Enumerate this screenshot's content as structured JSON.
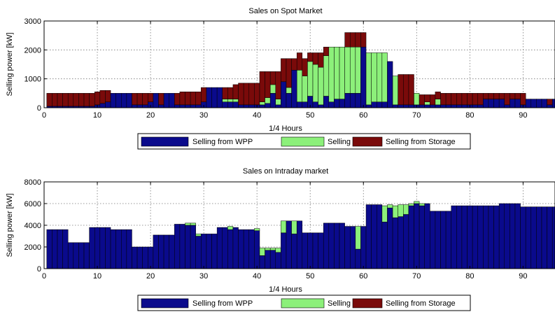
{
  "colors": {
    "wpp": "#0a0a8c",
    "pv": "#8cf07a",
    "storage": "#7a0a0a"
  },
  "chart_data": [
    {
      "type": "bar",
      "stacked": true,
      "title": "Sales on Spot Market",
      "xlabel": "1/4 Hours",
      "ylabel": "Selling power [kW]",
      "xlim": [
        0,
        96
      ],
      "ylim": [
        0,
        3000
      ],
      "xticks": [
        0,
        10,
        20,
        30,
        40,
        50,
        60,
        70,
        80,
        90
      ],
      "yticks": [
        0,
        1000,
        2000,
        3000
      ],
      "grid": true,
      "legend": {
        "placement": "bottom-outside",
        "entries": [
          "Selling from WPP",
          "Selling from PV",
          "Selling from Storage"
        ]
      },
      "x": [
        1,
        2,
        3,
        4,
        5,
        6,
        7,
        8,
        9,
        10,
        11,
        12,
        13,
        14,
        15,
        16,
        17,
        18,
        19,
        20,
        21,
        22,
        23,
        24,
        25,
        26,
        27,
        28,
        29,
        30,
        31,
        32,
        33,
        34,
        35,
        36,
        37,
        38,
        39,
        40,
        41,
        42,
        43,
        44,
        45,
        46,
        47,
        48,
        49,
        50,
        51,
        52,
        53,
        54,
        55,
        56,
        57,
        58,
        59,
        60,
        61,
        62,
        63,
        64,
        65,
        66,
        67,
        68,
        69,
        70,
        71,
        72,
        73,
        74,
        75,
        76,
        77,
        78,
        79,
        80,
        81,
        82,
        83,
        84,
        85,
        86,
        87,
        88,
        89,
        90,
        91,
        92,
        93,
        94,
        95,
        96
      ],
      "series": [
        {
          "name": "Selling from WPP",
          "values": [
            50,
            50,
            50,
            50,
            50,
            50,
            50,
            50,
            50,
            100,
            150,
            200,
            500,
            500,
            500,
            500,
            100,
            100,
            100,
            200,
            500,
            100,
            500,
            500,
            100,
            100,
            100,
            100,
            100,
            200,
            700,
            700,
            700,
            200,
            200,
            200,
            100,
            100,
            100,
            100,
            100,
            150,
            500,
            100,
            900,
            500,
            1300,
            200,
            200,
            400,
            200,
            100,
            400,
            200,
            300,
            300,
            500,
            500,
            500,
            2100,
            100,
            200,
            200,
            200,
            1600,
            100,
            100,
            100,
            100,
            100,
            100,
            100,
            100,
            100,
            100,
            100,
            100,
            100,
            100,
            100,
            100,
            100,
            300,
            300,
            300,
            300,
            100,
            300,
            300,
            100,
            300,
            300,
            300,
            300,
            100,
            300
          ]
        },
        {
          "name": "Selling from PV",
          "values": [
            0,
            0,
            0,
            0,
            0,
            0,
            0,
            0,
            0,
            0,
            0,
            0,
            0,
            0,
            0,
            0,
            0,
            0,
            0,
            0,
            0,
            0,
            0,
            0,
            0,
            0,
            0,
            0,
            0,
            0,
            0,
            0,
            0,
            100,
            100,
            100,
            0,
            0,
            0,
            0,
            100,
            200,
            300,
            200,
            0,
            200,
            0,
            1100,
            900,
            1200,
            1300,
            1300,
            1400,
            1900,
            1800,
            1800,
            1600,
            1600,
            1600,
            0,
            1800,
            1700,
            1700,
            1700,
            0,
            1000,
            0,
            0,
            0,
            400,
            0,
            100,
            0,
            200,
            0,
            0,
            0,
            0,
            0,
            0,
            0,
            0,
            0,
            0,
            0,
            0,
            0,
            0,
            0,
            0,
            0,
            0,
            0,
            0,
            0,
            0
          ]
        },
        {
          "name": "Selling from Storage",
          "values": [
            450,
            450,
            450,
            450,
            450,
            450,
            450,
            450,
            450,
            450,
            450,
            400,
            0,
            0,
            0,
            0,
            400,
            400,
            400,
            300,
            0,
            400,
            0,
            0,
            400,
            450,
            450,
            450,
            450,
            500,
            0,
            0,
            0,
            400,
            400,
            500,
            750,
            750,
            750,
            750,
            1050,
            900,
            450,
            950,
            800,
            1000,
            400,
            600,
            600,
            300,
            400,
            500,
            300,
            0,
            0,
            0,
            500,
            500,
            500,
            500,
            0,
            0,
            0,
            0,
            0,
            0,
            1050,
            1050,
            1050,
            0,
            350,
            250,
            350,
            250,
            400,
            400,
            400,
            400,
            400,
            400,
            400,
            400,
            200,
            200,
            200,
            200,
            400,
            200,
            200,
            400,
            0,
            0,
            0,
            0,
            200,
            0
          ]
        }
      ]
    },
    {
      "type": "bar",
      "stacked": true,
      "title": "Sales on Intraday market",
      "xlabel": "1/4 Hours",
      "ylabel": "Selling power [kW]",
      "xlim": [
        0,
        96
      ],
      "ylim": [
        0,
        8000
      ],
      "xticks": [
        0,
        10,
        20,
        30,
        40,
        50,
        60,
        70,
        80,
        90
      ],
      "yticks": [
        0,
        2000,
        4000,
        6000,
        8000
      ],
      "grid": true,
      "legend": {
        "placement": "bottom-outside",
        "entries": [
          "Selling from WPP",
          "Selling from PV",
          "Selling from Storage"
        ]
      },
      "x": [
        1,
        2,
        3,
        4,
        5,
        6,
        7,
        8,
        9,
        10,
        11,
        12,
        13,
        14,
        15,
        16,
        17,
        18,
        19,
        20,
        21,
        22,
        23,
        24,
        25,
        26,
        27,
        28,
        29,
        30,
        31,
        32,
        33,
        34,
        35,
        36,
        37,
        38,
        39,
        40,
        41,
        42,
        43,
        44,
        45,
        46,
        47,
        48,
        49,
        50,
        51,
        52,
        53,
        54,
        55,
        56,
        57,
        58,
        59,
        60,
        61,
        62,
        63,
        64,
        65,
        66,
        67,
        68,
        69,
        70,
        71,
        72,
        73,
        74,
        75,
        76,
        77,
        78,
        79,
        80,
        81,
        82,
        83,
        84,
        85,
        86,
        87,
        88,
        89,
        90,
        91,
        92,
        93,
        94,
        95,
        96
      ],
      "series": [
        {
          "name": "Selling from WPP",
          "values": [
            3600,
            3600,
            3600,
            3600,
            2400,
            2400,
            2400,
            2400,
            3800,
            3800,
            3800,
            3800,
            3600,
            3600,
            3600,
            3600,
            2000,
            2000,
            2000,
            2000,
            3100,
            3100,
            3100,
            3100,
            4100,
            4100,
            4000,
            4000,
            3000,
            3200,
            3200,
            3200,
            3800,
            3800,
            3600,
            3800,
            3600,
            3600,
            3600,
            3500,
            1200,
            1700,
            1700,
            1500,
            3300,
            4400,
            3200,
            4400,
            3300,
            3300,
            3300,
            3300,
            4200,
            4200,
            4200,
            4200,
            3900,
            3900,
            1800,
            3900,
            5900,
            5900,
            5900,
            4300,
            5600,
            4700,
            4800,
            5000,
            5800,
            6000,
            5800,
            6000,
            5300,
            5300,
            5300,
            5300,
            5800,
            5800,
            5800,
            5800,
            5800,
            5800,
            5800,
            5800,
            5800,
            6000,
            6000,
            6000,
            6000,
            5700,
            5700,
            5700,
            5700,
            5700,
            5700,
            5700
          ]
        },
        {
          "name": "Selling from PV",
          "values": [
            0,
            0,
            0,
            0,
            0,
            0,
            0,
            0,
            0,
            0,
            0,
            0,
            0,
            0,
            0,
            0,
            0,
            0,
            0,
            0,
            0,
            0,
            0,
            0,
            0,
            0,
            200,
            200,
            200,
            0,
            0,
            0,
            0,
            0,
            300,
            0,
            0,
            0,
            0,
            200,
            700,
            200,
            200,
            400,
            1100,
            0,
            1200,
            0,
            0,
            0,
            0,
            0,
            0,
            0,
            0,
            0,
            0,
            0,
            2100,
            0,
            0,
            0,
            0,
            1500,
            300,
            1100,
            1100,
            900,
            200,
            200,
            200,
            0,
            0,
            0,
            0,
            0,
            0,
            0,
            0,
            0,
            0,
            0,
            0,
            0,
            0,
            0,
            0,
            0,
            0,
            0,
            0,
            0,
            0,
            0,
            0,
            0
          ]
        },
        {
          "name": "Selling from Storage",
          "values": [
            0,
            0,
            0,
            0,
            0,
            0,
            0,
            0,
            0,
            0,
            0,
            0,
            0,
            0,
            0,
            0,
            0,
            0,
            0,
            0,
            0,
            0,
            0,
            0,
            0,
            0,
            0,
            0,
            0,
            0,
            0,
            0,
            0,
            0,
            0,
            0,
            0,
            0,
            0,
            0,
            0,
            0,
            0,
            0,
            0,
            0,
            0,
            0,
            0,
            0,
            0,
            0,
            0,
            0,
            0,
            0,
            0,
            0,
            0,
            0,
            0,
            0,
            0,
            0,
            0,
            0,
            0,
            0,
            0,
            0,
            0,
            0,
            0,
            0,
            0,
            0,
            0,
            0,
            0,
            0,
            0,
            0,
            0,
            0,
            0,
            0,
            0,
            0,
            0,
            0,
            0,
            0,
            0,
            0,
            0,
            0
          ]
        }
      ]
    }
  ]
}
